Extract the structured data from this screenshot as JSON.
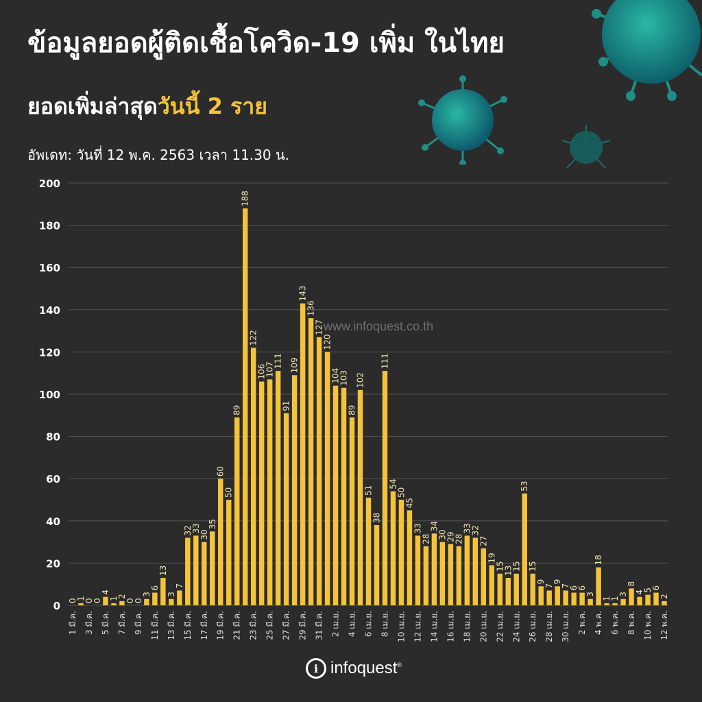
{
  "header": {
    "title": "ข้อมูลยอดผู้ติดเชื้อโควิด-19 เพิ่ม ในไทย",
    "subtitle_prefix": "ยอดเพิ่มล่าสุด",
    "subtitle_highlight": "วันนี้ 2 ราย",
    "update_text": "อัพเดท: วันที่ 12 พ.ค. 2563 เวลา 11.30 น."
  },
  "watermark": "www.infoquest.co.th",
  "footer": {
    "logo_mark": "i",
    "logo_text": "infoquest",
    "logo_sup": "®"
  },
  "colors": {
    "background": "#2b2b2b",
    "bar": "#f5c33b",
    "grid": "#555555",
    "text": "#ffffff"
  },
  "chart_data": {
    "type": "bar",
    "title": "ข้อมูลยอดผู้ติดเชื้อโควิด-19 เพิ่ม ในไทย",
    "ylim": [
      0,
      200
    ],
    "yticks": [
      0,
      20,
      40,
      60,
      80,
      100,
      120,
      140,
      160,
      180,
      200
    ],
    "grid": true,
    "categories": [
      "1 มี.ค.",
      "2 มี.ค.",
      "3 มี.ค.",
      "4 มี.ค.",
      "5 มี.ค.",
      "6 มี.ค.",
      "7 มี.ค.",
      "8 มี.ค.",
      "9 มี.ค.",
      "10 มี.ค.",
      "11 มี.ค.",
      "12 มี.ค.",
      "13 มี.ค.",
      "14 มี.ค.",
      "15 มี.ค.",
      "16 มี.ค.",
      "17 มี.ค.",
      "18 มี.ค.",
      "19 มี.ค.",
      "20 มี.ค.",
      "21 มี.ค.",
      "22 มี.ค.",
      "23 มี.ค.",
      "24 มี.ค.",
      "25 มี.ค.",
      "26 มี.ค.",
      "27 มี.ค.",
      "28 มี.ค.",
      "29 มี.ค.",
      "30 มี.ค.",
      "31 มี.ค.",
      "1 เม.ย.",
      "2 เม.ย.",
      "3 เม.ย.",
      "4 เม.ย.",
      "5 เม.ย.",
      "6 เม.ย.",
      "7 เม.ย.",
      "8 เม.ย.",
      "9 เม.ย.",
      "10 เม.ย.",
      "11 เม.ย.",
      "12 เม.ย.",
      "13 เม.ย.",
      "14 เม.ย.",
      "15 เม.ย.",
      "16 เม.ย.",
      "17 เม.ย.",
      "18 เม.ย.",
      "19 เม.ย.",
      "20 เม.ย.",
      "21 เม.ย.",
      "22 เม.ย.",
      "23 เม.ย.",
      "24 เม.ย.",
      "25 เม.ย.",
      "26 เม.ย.",
      "27 เม.ย.",
      "28 เม.ย.",
      "29 เม.ย.",
      "30 เม.ย.",
      "1 พ.ค.",
      "2 พ.ค.",
      "3 พ.ค.",
      "4 พ.ค.",
      "5 พ.ค.",
      "6 พ.ค.",
      "7 พ.ค.",
      "8 พ.ค.",
      "9 พ.ค.",
      "10 พ.ค.",
      "11 พ.ค.",
      "12 พ.ค."
    ],
    "tick_labels_shown": [
      "1 มี.ค.",
      "3 มี.ค.",
      "5 มี.ค.",
      "7 มี.ค.",
      "9 มี.ค.",
      "11 มี.ค.",
      "13 มี.ค.",
      "15 มี.ค.",
      "17 มี.ค.",
      "19 มี.ค.",
      "21 มี.ค.",
      "23 มี.ค.",
      "25 มี.ค.",
      "27 มี.ค.",
      "29 มี.ค.",
      "31 มี.ค.",
      "2 เม.ย.",
      "4 เม.ย.",
      "6 เม.ย.",
      "8 เม.ย.",
      "10 เม.ย.",
      "12 เม.ย.",
      "14 เม.ย.",
      "16 เม.ย.",
      "18 เม.ย.",
      "20 เม.ย.",
      "22 เม.ย.",
      "24 เม.ย.",
      "26 เม.ย.",
      "28 เม.ย.",
      "30 เม.ย.",
      "2 พ.ค.",
      "4 พ.ค.",
      "6 พ.ค.",
      "8 พ.ค.",
      "10 พ.ค.",
      "12 พ.ค."
    ],
    "values": [
      0,
      1,
      0,
      0,
      4,
      1,
      2,
      0,
      0,
      3,
      6,
      13,
      3,
      7,
      32,
      33,
      30,
      35,
      60,
      50,
      89,
      188,
      122,
      106,
      107,
      111,
      91,
      109,
      143,
      136,
      127,
      120,
      104,
      103,
      89,
      102,
      51,
      38,
      111,
      54,
      50,
      45,
      33,
      28,
      34,
      30,
      29,
      28,
      33,
      32,
      27,
      19,
      15,
      13,
      15,
      53,
      15,
      9,
      7,
      9,
      7,
      6,
      6,
      3,
      18,
      1,
      1,
      3,
      8,
      4,
      5,
      6,
      2
    ]
  }
}
